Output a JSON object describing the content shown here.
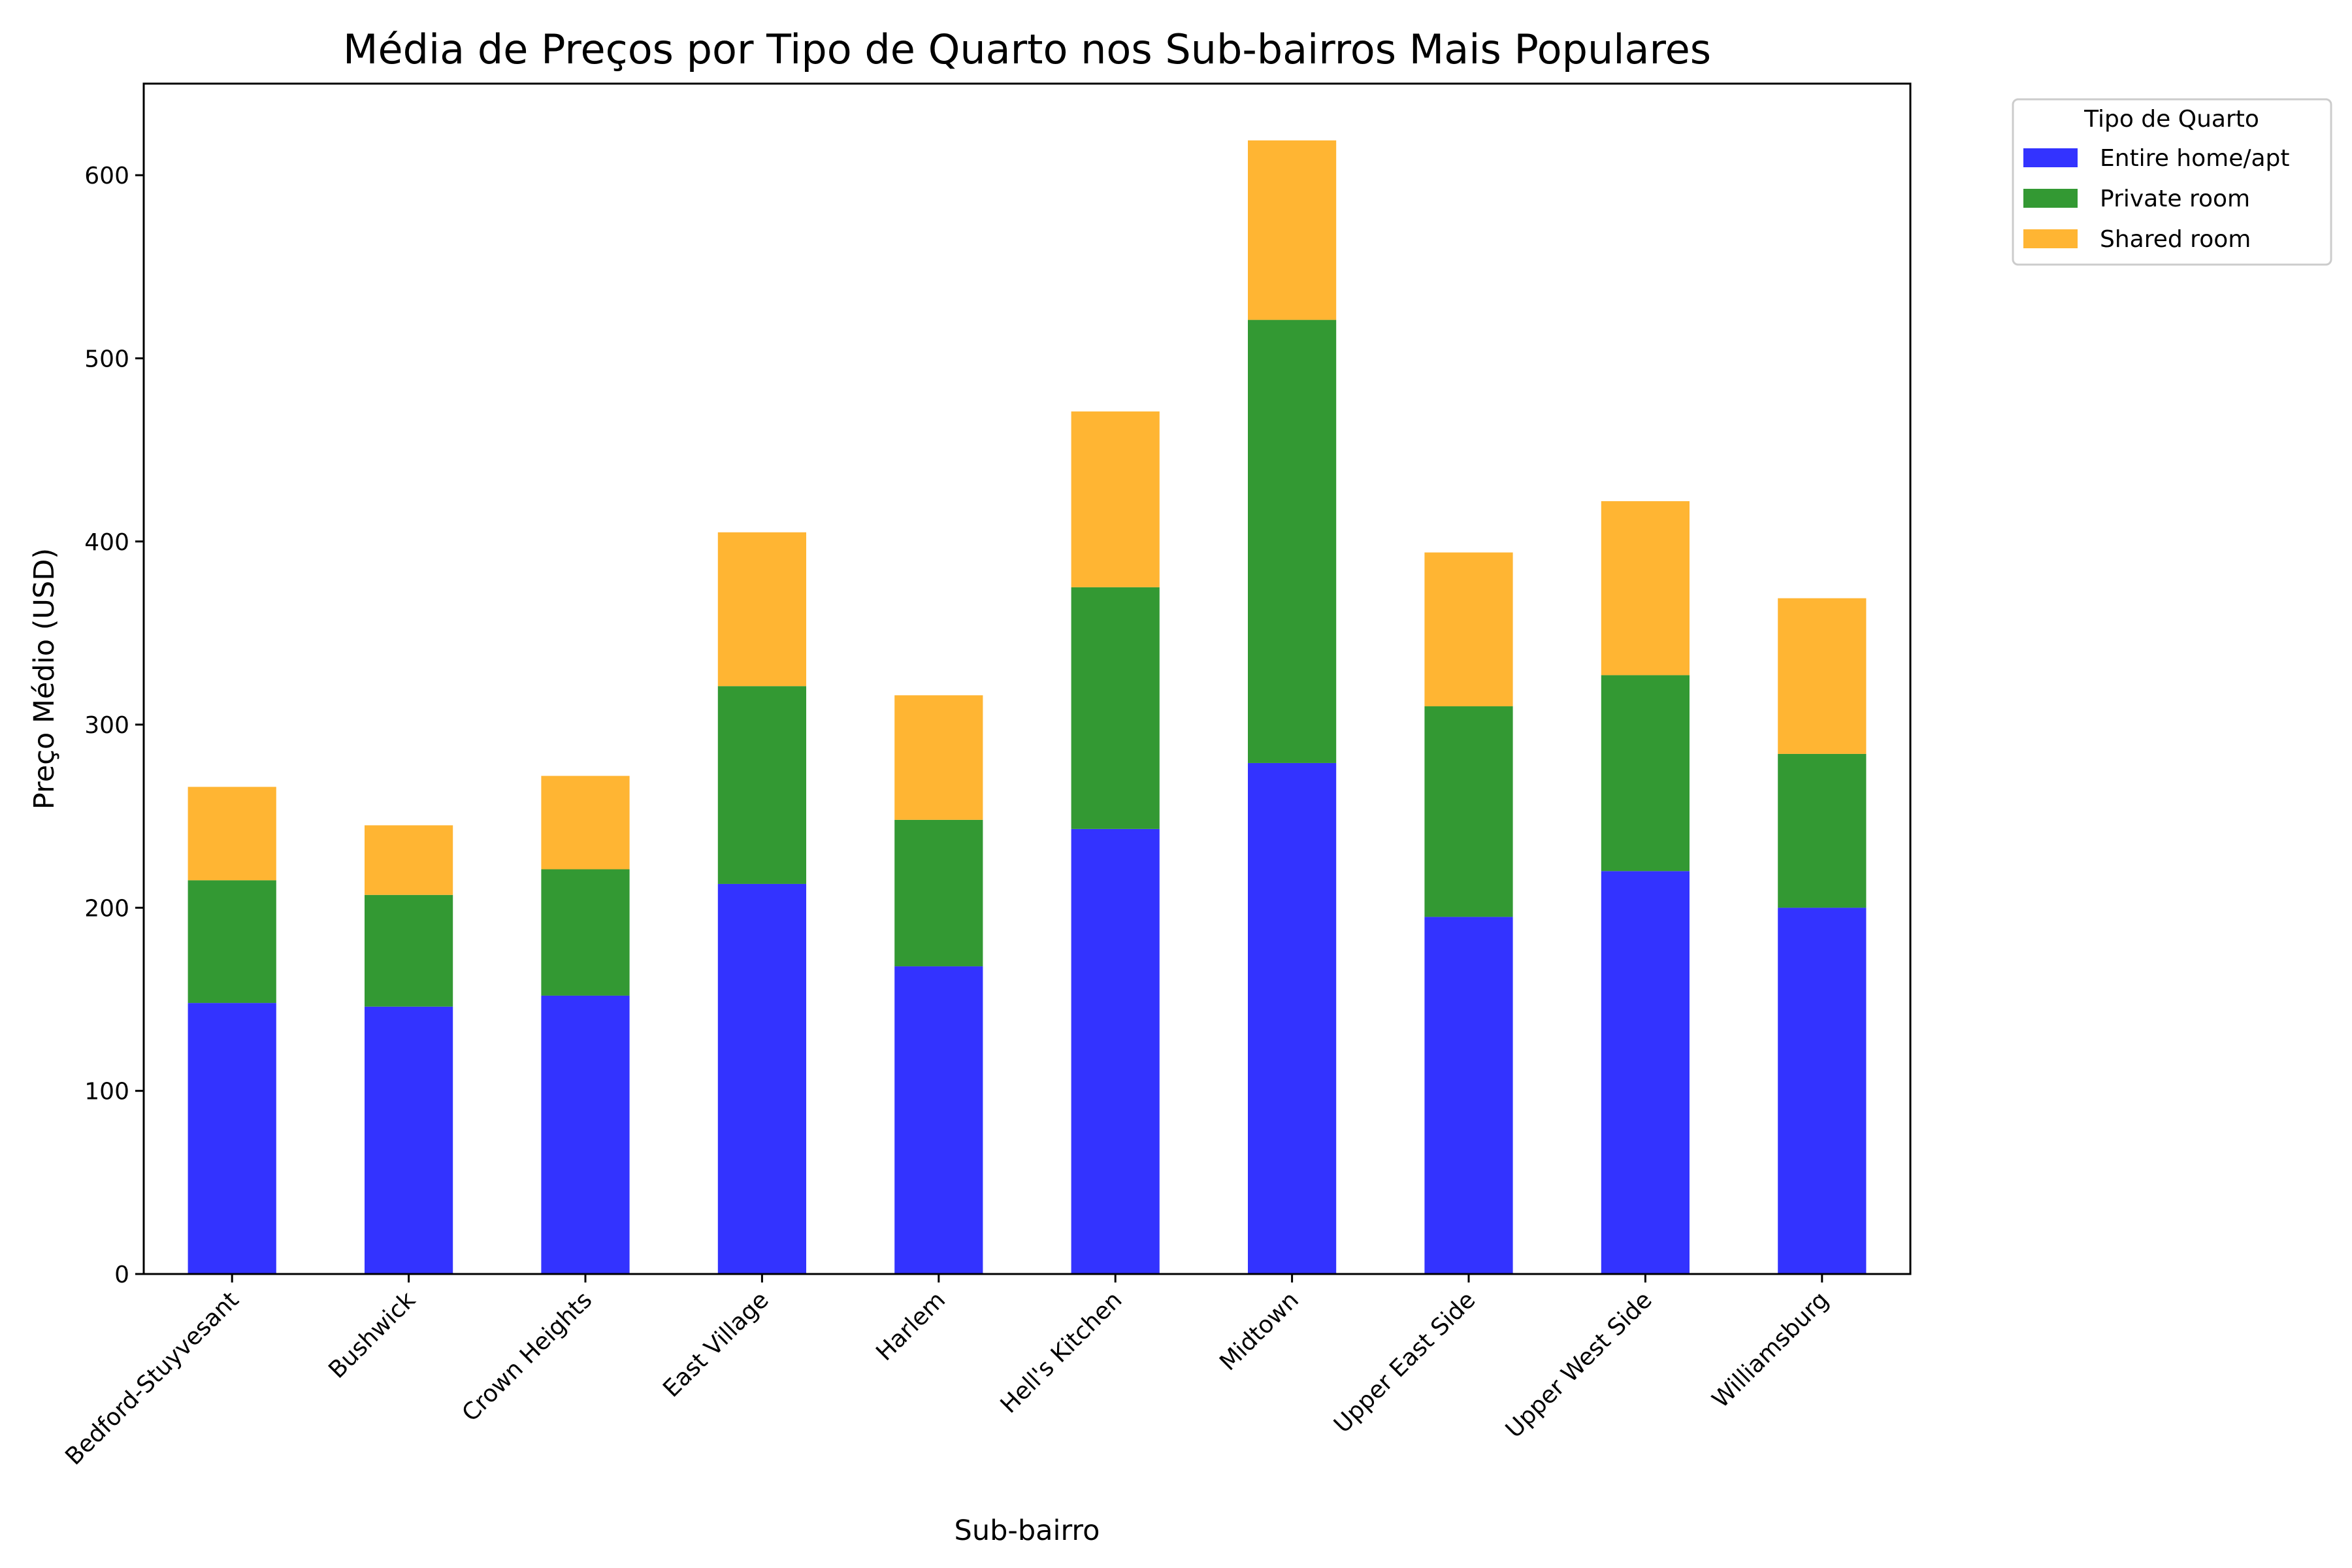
{
  "chart_data": {
    "type": "bar",
    "stacked": true,
    "title": "Média de Preços por Tipo de Quarto nos Sub-bairros Mais Populares",
    "xlabel": "Sub-bairro",
    "ylabel": "Preço Médio (USD)",
    "ylim": [
      0,
      650
    ],
    "yticks": [
      0,
      100,
      200,
      300,
      400,
      500,
      600
    ],
    "grid": false,
    "legend": {
      "title": "Tipo de Quarto",
      "placement": "outside-top-right"
    },
    "categories": [
      "Bedford-Stuyvesant",
      "Bushwick",
      "Crown Heights",
      "East Village",
      "Harlem",
      "Hell's Kitchen",
      "Midtown",
      "Upper East Side",
      "Upper West Side",
      "Williamsburg"
    ],
    "series": [
      {
        "name": "Entire home/apt",
        "color": "#3333ff",
        "values": [
          148,
          146,
          152,
          213,
          168,
          243,
          279,
          195,
          220,
          200
        ]
      },
      {
        "name": "Private room",
        "color": "#339933",
        "values": [
          67,
          61,
          69,
          108,
          80,
          132,
          242,
          115,
          107,
          84
        ]
      },
      {
        "name": "Shared room",
        "color": "#ffb533",
        "values": [
          51,
          38,
          51,
          84,
          68,
          96,
          98,
          84,
          95,
          85
        ]
      }
    ]
  }
}
